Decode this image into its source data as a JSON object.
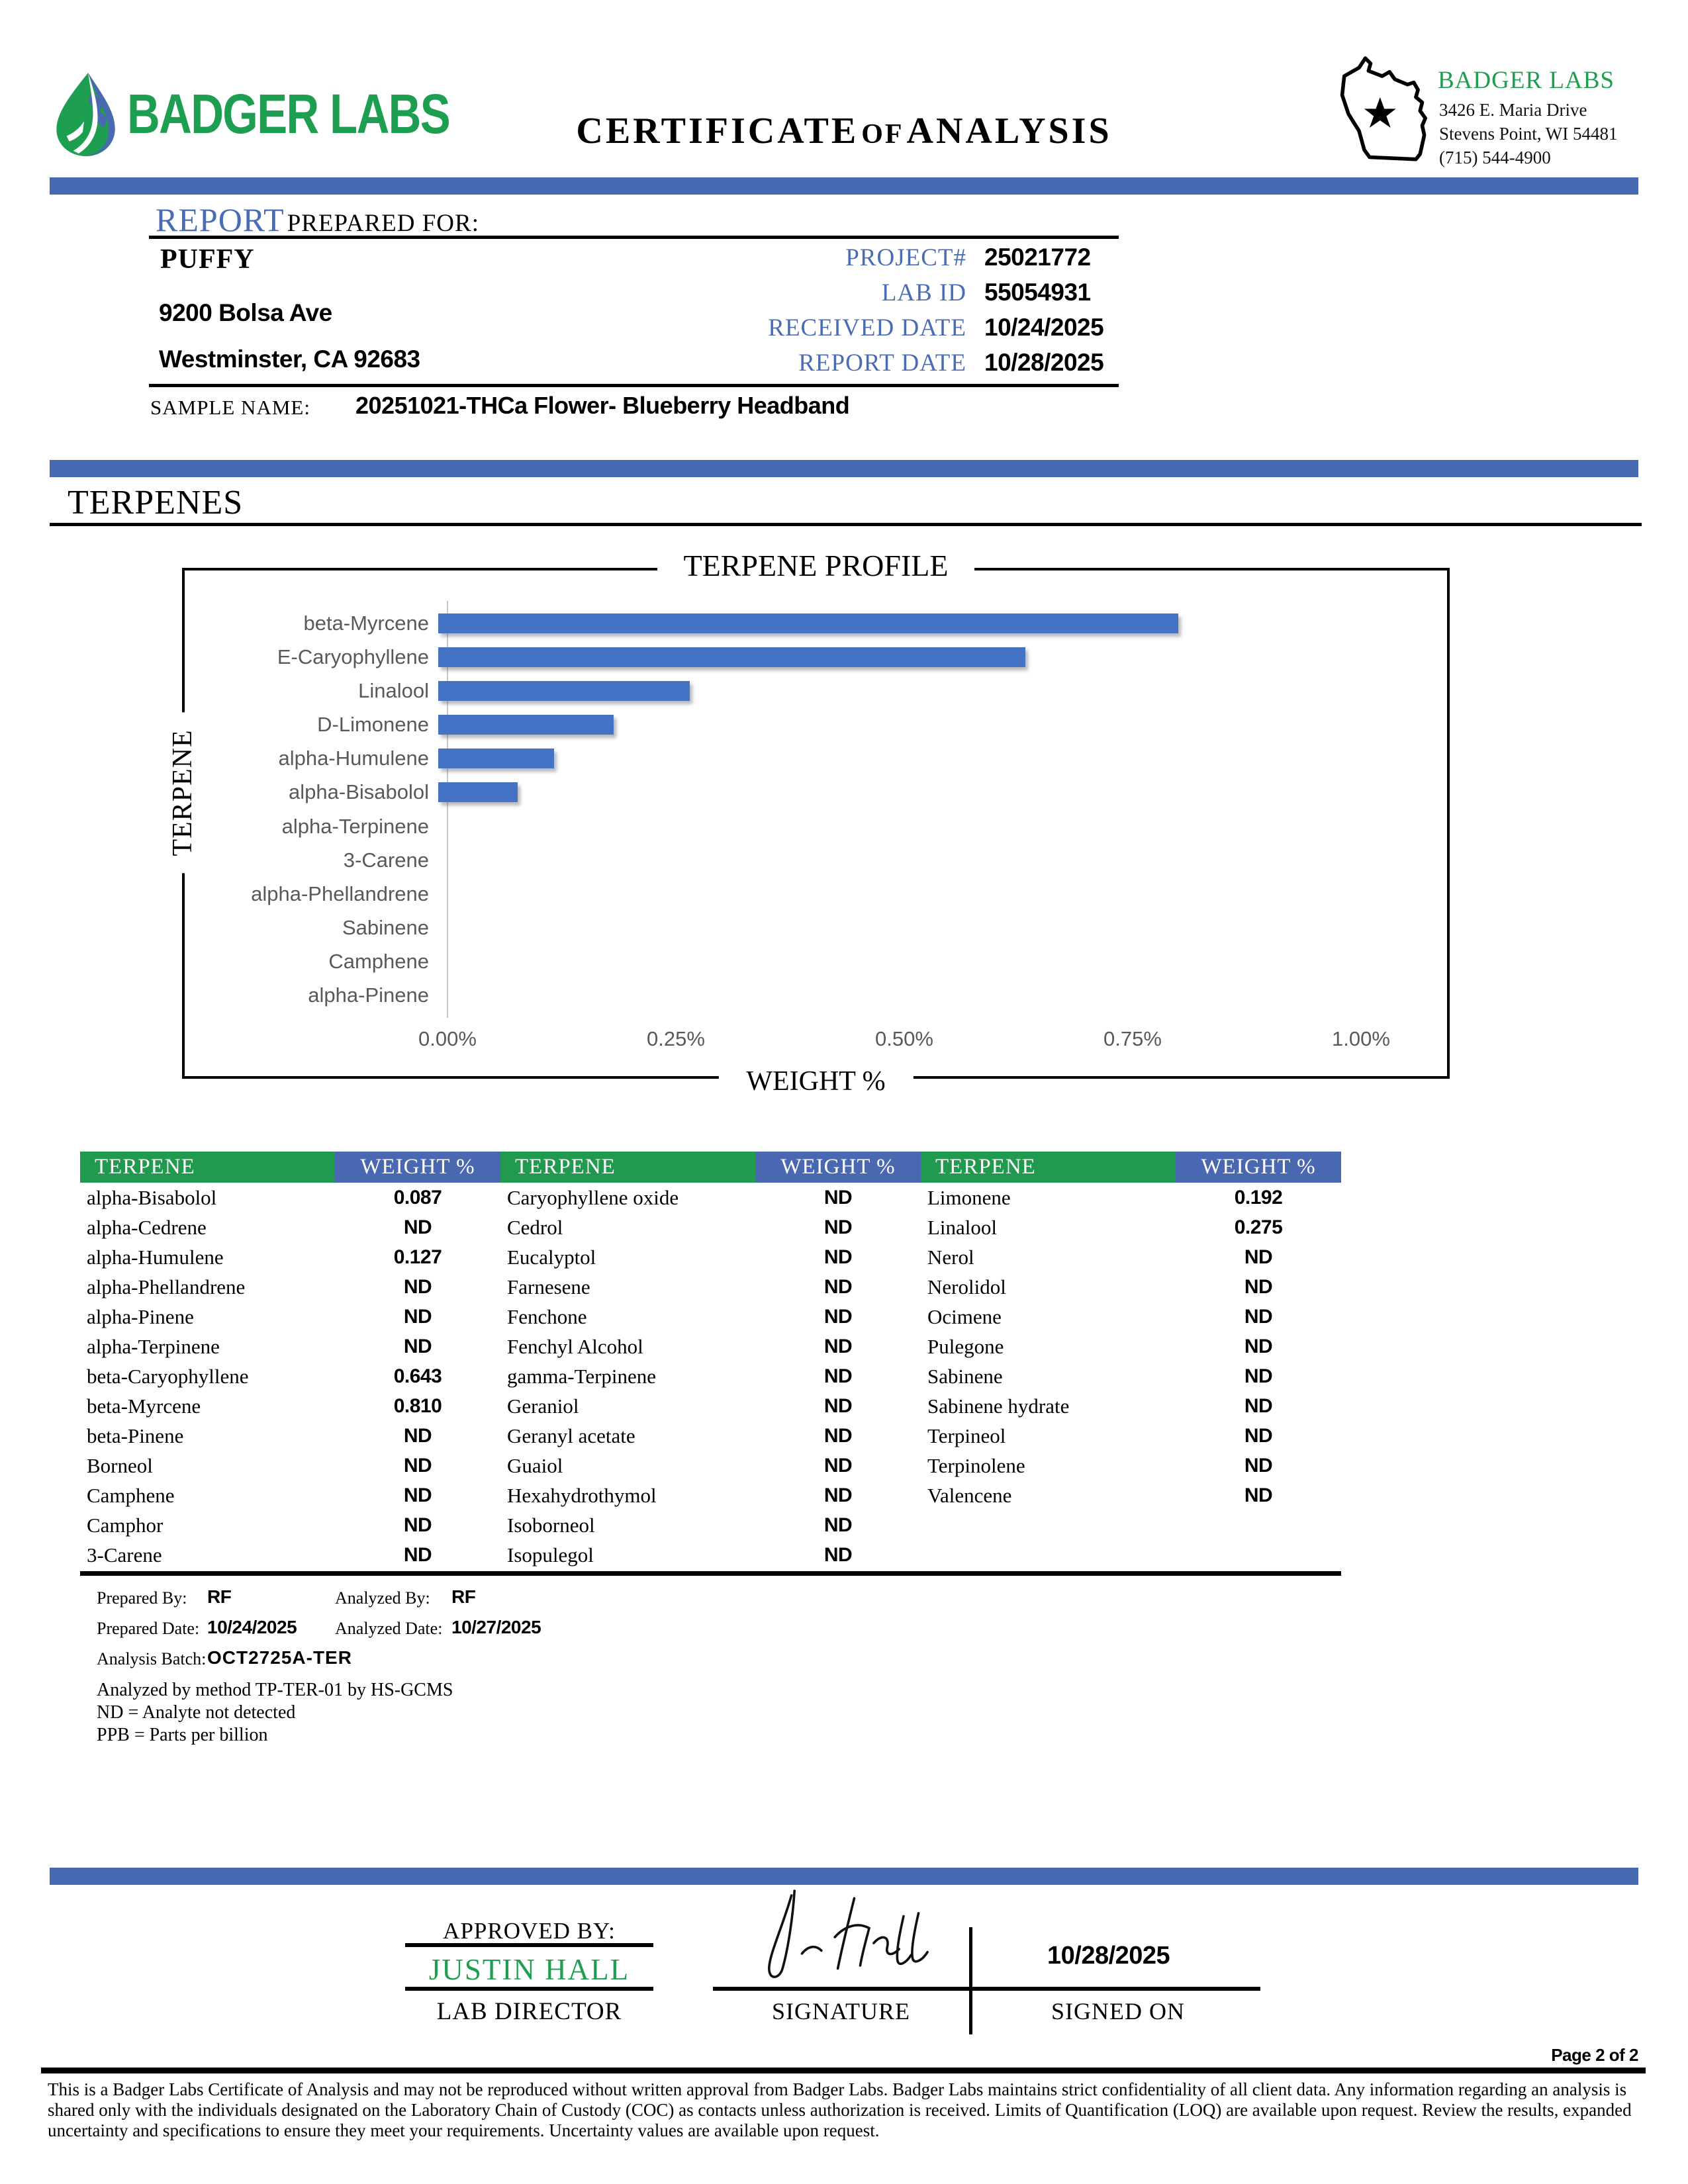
{
  "header": {
    "logo_text": "BADGER LABS",
    "title_part1": "CERTIFICATE",
    "title_part2": "OF",
    "title_part3": "ANALYSIS",
    "lab_name": "BADGER LABS",
    "lab_address_line1": "3426 E. Maria Drive",
    "lab_address_line2": "Stevens Point, WI 54481",
    "lab_phone": "(715) 544-4900"
  },
  "report": {
    "title_blue": "REPORT",
    "title_rest": "PREPARED FOR:",
    "client_name": "PUFFY",
    "client_address_1": "9200 Bolsa Ave",
    "client_address_2": "Westminster, CA 92683",
    "fields": [
      {
        "label": "PROJECT#",
        "value": "25021772"
      },
      {
        "label": "LAB ID",
        "value": "55054931"
      },
      {
        "label": "RECEIVED DATE",
        "value": "10/24/2025"
      },
      {
        "label": "REPORT DATE",
        "value": "10/28/2025"
      }
    ],
    "sample_label": "SAMPLE NAME:",
    "sample_value": "20251021-THCa Flower- Blueberry Headband"
  },
  "section_title": "TERPENES",
  "chart_data": {
    "type": "bar",
    "orientation": "horizontal",
    "title": "TERPENE PROFILE",
    "xlabel": "WEIGHT %",
    "ylabel": "TERPENE",
    "categories": [
      "beta-Myrcene",
      "E-Caryophyllene",
      "Linalool",
      "D-Limonene",
      "alpha-Humulene",
      "alpha-Bisabolol",
      "alpha-Terpinene",
      "3-Carene",
      "alpha-Phellandrene",
      "Sabinene",
      "Camphene",
      "alpha-Pinene"
    ],
    "values": [
      0.81,
      0.643,
      0.275,
      0.192,
      0.127,
      0.087,
      0,
      0,
      0,
      0,
      0,
      0
    ],
    "x_ticks": [
      "0.00%",
      "0.25%",
      "0.50%",
      "0.75%",
      "1.00%"
    ],
    "xlim": [
      0,
      1.0
    ],
    "grid": false,
    "bar_color": "#4472c4"
  },
  "table": {
    "headers": [
      "TERPENE",
      "WEIGHT %",
      "TERPENE",
      "WEIGHT %",
      "TERPENE",
      "WEIGHT %"
    ],
    "rows": [
      [
        "alpha-Bisabolol",
        "0.087",
        "Caryophyllene oxide",
        "ND",
        "Limonene",
        "0.192"
      ],
      [
        "alpha-Cedrene",
        "ND",
        "Cedrol",
        "ND",
        "Linalool",
        "0.275"
      ],
      [
        "alpha-Humulene",
        "0.127",
        "Eucalyptol",
        "ND",
        "Nerol",
        "ND"
      ],
      [
        "alpha-Phellandrene",
        "ND",
        "Farnesene",
        "ND",
        "Nerolidol",
        "ND"
      ],
      [
        "alpha-Pinene",
        "ND",
        "Fenchone",
        "ND",
        "Ocimene",
        "ND"
      ],
      [
        "alpha-Terpinene",
        "ND",
        "Fenchyl Alcohol",
        "ND",
        "Pulegone",
        "ND"
      ],
      [
        "beta-Caryophyllene",
        "0.643",
        "gamma-Terpinene",
        "ND",
        "Sabinene",
        "ND"
      ],
      [
        "beta-Myrcene",
        "0.810",
        "Geraniol",
        "ND",
        "Sabinene hydrate",
        "ND"
      ],
      [
        "beta-Pinene",
        "ND",
        "Geranyl acetate",
        "ND",
        "Terpineol",
        "ND"
      ],
      [
        "Borneol",
        "ND",
        "Guaiol",
        "ND",
        "Terpinolene",
        "ND"
      ],
      [
        "Camphene",
        "ND",
        "Hexahydrothymol",
        "ND",
        "Valencene",
        "ND"
      ],
      [
        "Camphor",
        "ND",
        "Isoborneol",
        "ND",
        "",
        ""
      ],
      [
        "3-Carene",
        "ND",
        "Isopulegol",
        "ND",
        "",
        ""
      ]
    ]
  },
  "meta": {
    "prepared_by_label": "Prepared By:",
    "prepared_by": "RF",
    "analyzed_by_label": "Analyzed By:",
    "analyzed_by": "RF",
    "prepared_date_label": "Prepared Date:",
    "prepared_date": "10/24/2025",
    "analyzed_date_label": "Analyzed Date:",
    "analyzed_date": "10/27/2025",
    "batch_label": "Analysis Batch:",
    "batch": "OCT2725A-TER",
    "method_note": "Analyzed by method TP-TER-01 by HS-GCMS",
    "nd_note": "ND = Analyte not detected",
    "ppb_note": "PPB = Parts per billion"
  },
  "approval": {
    "approved_by_label": "APPROVED BY:",
    "approver": "JUSTIN HALL",
    "approver_role": "LAB DIRECTOR",
    "signature_label": "SIGNATURE",
    "signed_on_label": "SIGNED ON",
    "signed_date": "10/28/2025"
  },
  "footer": {
    "page": "Page 2 of 2",
    "disclaimer": "This is a Badger Labs Certificate of Analysis and may not be reproduced without written approval from Badger Labs. Badger Labs maintains strict confidentiality of all client data. Any information regarding an analysis is shared only with the individuals designated on the Laboratory Chain of Custody (COC) as contacts unless authorization is received. Limits of Quantification (LOQ) are available upon request. Review the results, expanded uncertainty and specifications to ensure they meet your requirements. Uncertainty values are available upon request."
  },
  "colors": {
    "banner_blue": "#4769b1",
    "label_blue": "#4a6cb4",
    "brand_green": "#1e9e50",
    "table_header_green": "#21994f",
    "table_header_blue": "#4a67b2",
    "bar_blue": "#4472c4"
  }
}
